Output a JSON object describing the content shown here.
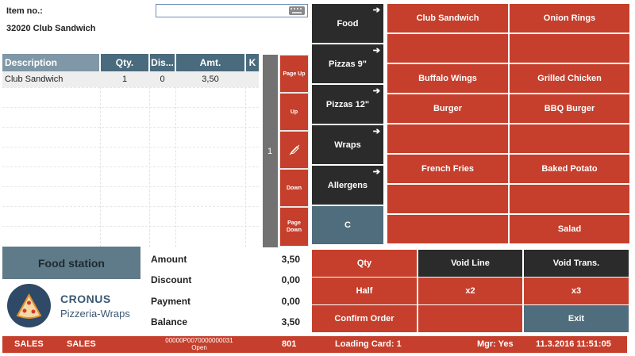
{
  "item": {
    "label": "Item no.:",
    "value": "32020 Club Sandwich",
    "input_value": ""
  },
  "table": {
    "headers": [
      "Description",
      "Qty.",
      "Dis...",
      "Amt.",
      "K"
    ],
    "rows": [
      {
        "description": "Club Sandwich",
        "qty": "1",
        "discount": "0",
        "amount": "3,50",
        "k": ""
      }
    ]
  },
  "scroll": {
    "page_label": "1",
    "page_up": "Page Up",
    "up": "Up",
    "down": "Down",
    "page_down_1": "Page",
    "page_down_2": "Down"
  },
  "categories": [
    "Food",
    "Pizzas 9\"",
    "Pizzas 12\"",
    "Wraps",
    "Allergens"
  ],
  "clear_label": "C",
  "products": {
    "left": [
      "Club Sandwich",
      "",
      "Buffalo Wings",
      "Burger",
      "",
      "French Fries",
      "",
      ""
    ],
    "right": [
      "Onion Rings",
      "",
      "Grilled Chicken",
      "BBQ Burger",
      "",
      "Baked Potato",
      "",
      "Salad"
    ]
  },
  "food_station": "Food station",
  "totals": {
    "amount_label": "Amount",
    "amount": "3,50",
    "discount_label": "Discount",
    "discount": "0,00",
    "payment_label": "Payment",
    "payment": "0,00",
    "balance_label": "Balance",
    "balance": "3,50"
  },
  "logo": {
    "line1": "CRONUS",
    "line2": "Pizzeria-Wraps"
  },
  "functions": {
    "qty": "Qty",
    "void_line": "Void Line",
    "void_trans": "Void Trans.",
    "half": "Half",
    "x2": "x2",
    "x3": "x3",
    "confirm": "Confirm Order",
    "blank": "",
    "exit": "Exit"
  },
  "status": {
    "s1": "SALES",
    "s2": "SALES",
    "tx_id": "00000P0070000000031",
    "tx_state": "Open",
    "terminal": "801",
    "loading": "Loading Card: 1",
    "mgr": "Mgr: Yes",
    "datetime": "11.3.2016 11:51:05"
  },
  "colors": {
    "accent_red": "#c53f2c",
    "dark": "#2b2b2b",
    "slate": "#4f6d7c"
  }
}
